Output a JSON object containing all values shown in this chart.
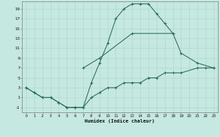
{
  "xlabel": "Humidex (Indice chaleur)",
  "bg_color": "#c5e8e0",
  "line_color": "#2a6b5a",
  "xlim": [
    -0.5,
    23.5
  ],
  "ylim": [
    -2.0,
    20.5
  ],
  "xtick_vals": [
    0,
    1,
    2,
    3,
    4,
    5,
    6,
    7,
    8,
    9,
    10,
    11,
    12,
    13,
    14,
    15,
    16,
    17,
    18,
    19,
    20,
    21,
    22,
    23
  ],
  "ytick_vals": [
    -1,
    1,
    3,
    5,
    7,
    9,
    11,
    13,
    15,
    17,
    19
  ],
  "curve1_x": [
    0,
    1,
    2,
    3,
    4,
    5,
    6,
    7,
    8,
    9,
    10,
    11,
    12,
    13,
    14,
    15,
    16,
    17,
    18
  ],
  "curve1_y": [
    3,
    2,
    1,
    1,
    0,
    -1,
    -1,
    -1,
    4,
    8,
    12,
    17,
    19,
    20,
    20,
    20,
    18,
    16,
    14
  ],
  "curve2_x": [
    7,
    9,
    13,
    18,
    19,
    21,
    23
  ],
  "curve2_y": [
    7,
    9,
    14,
    14,
    10,
    8,
    7
  ],
  "curve3_x": [
    0,
    1,
    2,
    3,
    4,
    5,
    6,
    7,
    8,
    9,
    10,
    11,
    12,
    13,
    14,
    15,
    16,
    17,
    18,
    19,
    21,
    22,
    23
  ],
  "curve3_y": [
    3,
    2,
    1,
    1,
    0,
    -1,
    -1,
    -1,
    1,
    2,
    3,
    3,
    4,
    4,
    4,
    5,
    5,
    6,
    6,
    6,
    7,
    7,
    7
  ]
}
